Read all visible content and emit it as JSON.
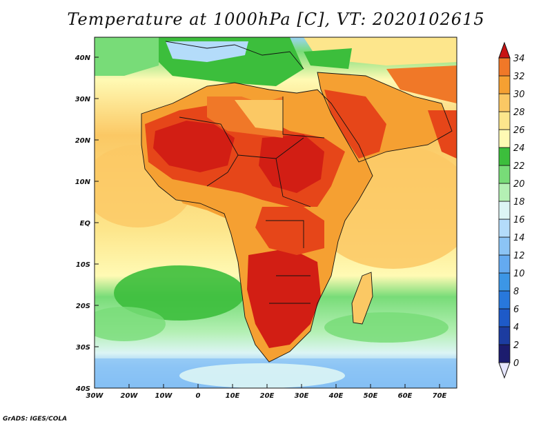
{
  "title": "Temperature at 1000hPa [C], VT: 2020102615",
  "credit": "GrADS: IGES/COLA",
  "map": {
    "lon_ticks": [
      "30W",
      "20W",
      "10W",
      "0",
      "10E",
      "20E",
      "30E",
      "40E",
      "50E",
      "60E",
      "70E"
    ],
    "lat_ticks": [
      "40S",
      "30S",
      "20S",
      "10S",
      "EQ",
      "10N",
      "20N",
      "30N",
      "40N"
    ],
    "colorbar": {
      "labels": [
        "0",
        "2",
        "4",
        "6",
        "8",
        "10",
        "12",
        "14",
        "16",
        "18",
        "20",
        "22",
        "24",
        "26",
        "28",
        "30",
        "32",
        "34"
      ],
      "colors": [
        "#e6e6ff",
        "#1c1c6e",
        "#1c3ca0",
        "#1e5ac8",
        "#2878dc",
        "#3c96e6",
        "#64aaf0",
        "#8cc4f5",
        "#b4dcfa",
        "#dcf5f5",
        "#b4f0b4",
        "#78dc78",
        "#3cbe3c",
        "#fffab4",
        "#fde68c",
        "#fbc864",
        "#f5a032",
        "#f07828",
        "#e64619",
        "#d21e14",
        "#c81414"
      ]
    }
  }
}
